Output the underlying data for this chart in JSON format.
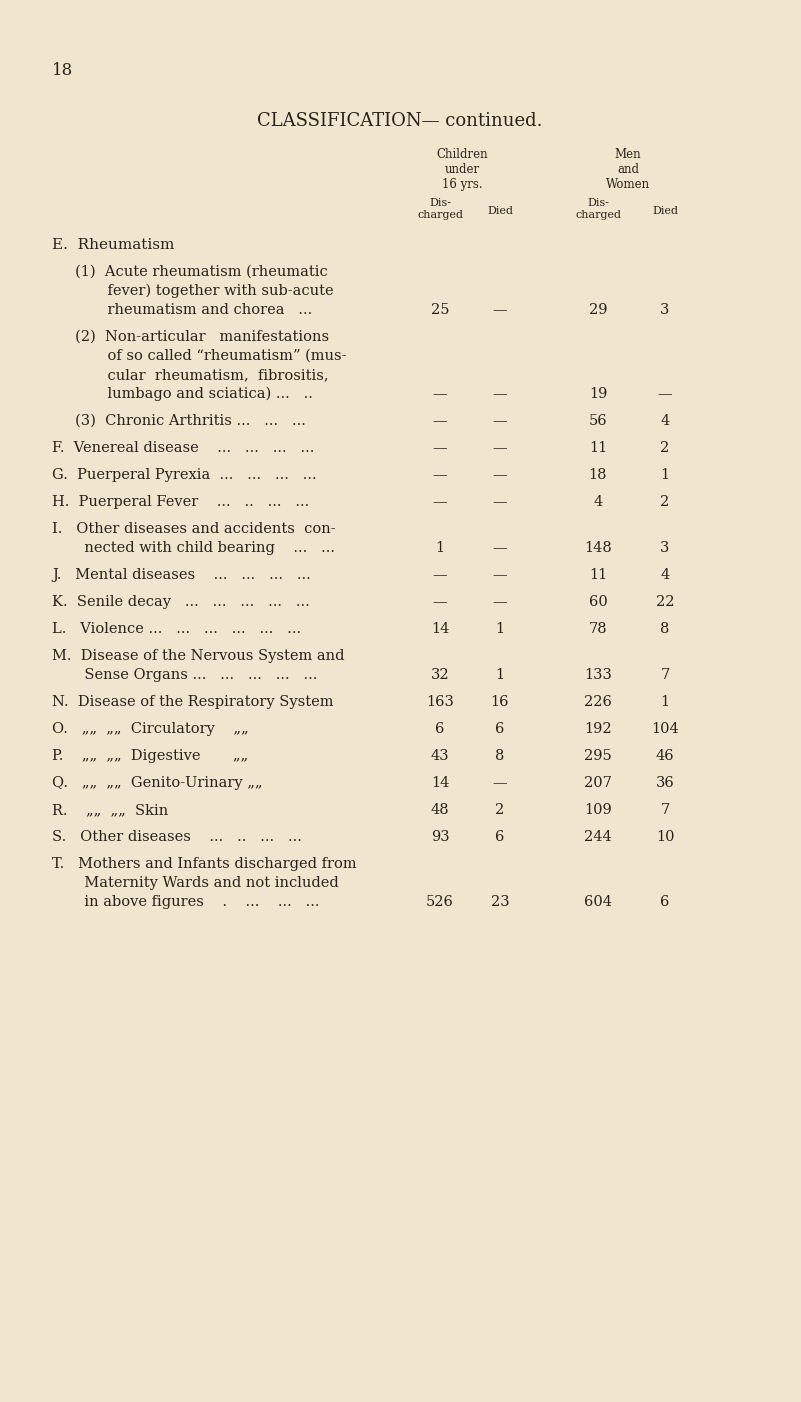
{
  "page_number": "18",
  "title": "CLASSIFICATION— continued.",
  "background_color": "#f0e6d0",
  "text_color": "#2a2218",
  "figsize": [
    8.01,
    14.02
  ],
  "dpi": 100,
  "rows": [
    {
      "label": "E.  Rheumatism",
      "header": true,
      "ch_dis": null,
      "ch_died": null,
      "mw_dis": null,
      "mw_died": null,
      "label_lines": [
        "E.  Rheumatism"
      ]
    },
    {
      "label": "     (1)  Acute rheumatism (rheumatic fever) together with sub-acute\n            rheumatism and chorea   ...",
      "label_lines": [
        "     (1)  Acute rheumatism (rheumatic",
        "            fever) together with sub-acute",
        "            rheumatism and chorea   ... "
      ],
      "ch_dis": "25",
      "ch_died": "—",
      "mw_dis": "29",
      "mw_died": "3"
    },
    {
      "label": "(2) Non-articular  manifestations of so called “rheumatism” (mus- cular  rheumatism,  fibrositis, lumbago and sciatica)",
      "label_lines": [
        "     (2)  Non-articular   manifestations",
        "            of so called “rheumatism” (mus-",
        "            cular  rheumatism,  fibrositis,",
        "            lumbago and sciatica) ...   .."
      ],
      "ch_dis": "—",
      "ch_died": "—",
      "mw_dis": "19",
      "mw_died": "—"
    },
    {
      "label_lines": [
        "     (3)  Chronic Arthritis ...   ...   ..."
      ],
      "ch_dis": "—",
      "ch_died": "—",
      "mw_dis": "56",
      "mw_died": "4"
    },
    {
      "label_lines": [
        "F.  Venereal disease    ...   ...   ...   ..."
      ],
      "ch_dis": "—",
      "ch_died": "—",
      "mw_dis": "11",
      "mw_died": "2"
    },
    {
      "label_lines": [
        "G.  Puerperal Pyrexia  ...   ...   ...   ..."
      ],
      "ch_dis": "—",
      "ch_died": "—",
      "mw_dis": "18",
      "mw_died": "1"
    },
    {
      "label_lines": [
        "H.  Puerperal Fever    ...   ..   ...   ..."
      ],
      "ch_dis": "—",
      "ch_died": "—",
      "mw_dis": "4",
      "mw_died": "2"
    },
    {
      "label_lines": [
        "I.   Other diseases and accidents  con-",
        "       nected with child bearing    ...   ..."
      ],
      "ch_dis": "1",
      "ch_died": "—",
      "mw_dis": "148",
      "mw_died": "3"
    },
    {
      "label_lines": [
        "J.   Mental diseases    ...   ...   ...   ..."
      ],
      "ch_dis": "—",
      "ch_died": "—",
      "mw_dis": "11",
      "mw_died": "4"
    },
    {
      "label_lines": [
        "K.  Senile decay   ...   ...   ...   ...   ..."
      ],
      "ch_dis": "—",
      "ch_died": "—",
      "mw_dis": "60",
      "mw_died": "22"
    },
    {
      "label_lines": [
        "L.   Violence ...   ...   ...   ...   ...   ... 14   1"
      ],
      "ch_dis": null,
      "ch_died": null,
      "mw_dis": "78",
      "mw_died": "8",
      "inline_ch_dis": "14",
      "inline_ch_died": "1"
    },
    {
      "label_lines": [
        "M.  Disease of the Nervous System and",
        "       Sense Organs ...   ...   ...   ...   ... 32   1"
      ],
      "ch_dis": null,
      "ch_died": null,
      "mw_dis": "133",
      "mw_died": "7",
      "inline_ch_dis": "32",
      "inline_ch_died": "1"
    },
    {
      "label_lines": [
        "N.  Disease of the Respiratory System  163  16"
      ],
      "ch_dis": null,
      "ch_died": null,
      "mw_dis": "226",
      "mw_died": "1",
      "inline_ch_dis": "163",
      "inline_ch_died": "16"
    },
    {
      "label_lines": [
        "O.   „„  „„  Circulatory    „„     6    6"
      ],
      "ch_dis": null,
      "ch_died": null,
      "mw_dis": "192",
      "mw_died": "104",
      "inline_ch_dis": "6",
      "inline_ch_died": "6"
    },
    {
      "label_lines": [
        "P.    „„  „„  Digestive      „„    43   8"
      ],
      "ch_dis": null,
      "ch_died": null,
      "mw_dis": "295",
      "mw_died": "46",
      "inline_ch_dis": "43",
      "inline_ch_died": "8"
    },
    {
      "label_lines": [
        "Q.   „„  „„  Genito-Urinary „„  14  —"
      ],
      "ch_dis": null,
      "ch_died": null,
      "mw_dis": "207",
      "mw_died": "36",
      "inline_ch_dis": "14",
      "inline_ch_died": "—"
    },
    {
      "label_lines": [
        "R.    „„  „„  Skin              48   2"
      ],
      "ch_dis": null,
      "ch_died": null,
      "mw_dis": "109",
      "mw_died": "7",
      "inline_ch_dis": "48",
      "inline_ch_died": "2"
    },
    {
      "label_lines": [
        "S.   Other diseases    ...   ..   ...   ...  93   6"
      ],
      "ch_dis": null,
      "ch_died": null,
      "mw_dis": "244",
      "mw_died": "10",
      "inline_ch_dis": "93",
      "inline_ch_died": "6"
    },
    {
      "label_lines": [
        "T.   Mothers and Infants discharged from",
        "       Maternity Wards and not included",
        "       in above figures    .    ...    ...   ...526  23"
      ],
      "ch_dis": null,
      "ch_died": null,
      "mw_dis": "604",
      "mw_died": "6",
      "inline_ch_dis": "526",
      "inline_ch_died": "23"
    }
  ]
}
